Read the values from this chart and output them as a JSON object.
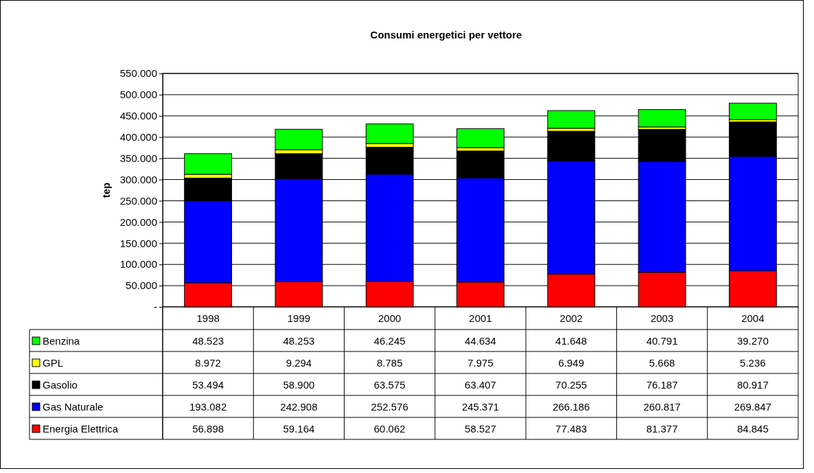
{
  "chart_data": {
    "type": "bar",
    "title": "Consumi energetici per vettore",
    "ylabel": "tep",
    "stacked": true,
    "grid": "y",
    "legend": "bottom",
    "categories": [
      "1998",
      "1999",
      "2000",
      "2001",
      "2002",
      "2003",
      "2004"
    ],
    "ylim": [
      0,
      550000
    ],
    "yticks": [
      {
        "value": 0,
        "label": "-"
      },
      {
        "value": 50000,
        "label": "50.000"
      },
      {
        "value": 100000,
        "label": "100.000"
      },
      {
        "value": 150000,
        "label": "150.000"
      },
      {
        "value": 200000,
        "label": "200.000"
      },
      {
        "value": 250000,
        "label": "250.000"
      },
      {
        "value": 300000,
        "label": "300.000"
      },
      {
        "value": 350000,
        "label": "350.000"
      },
      {
        "value": 400000,
        "label": "400.000"
      },
      {
        "value": 450000,
        "label": "450.000"
      },
      {
        "value": 500000,
        "label": "500.000"
      },
      {
        "value": 550000,
        "label": "550.000"
      }
    ],
    "series": [
      {
        "name": "Energia Elettrica",
        "color": "#ff0000",
        "values": [
          56898,
          59164,
          60062,
          58527,
          77483,
          81377,
          84845
        ],
        "value_labels": [
          "56.898",
          "59.164",
          "60.062",
          "58.527",
          "77.483",
          "81.377",
          "84.845"
        ]
      },
      {
        "name": "Gas Naturale",
        "color": "#0000ff",
        "values": [
          193082,
          242908,
          252576,
          245371,
          266186,
          260817,
          269847
        ],
        "value_labels": [
          "193.082",
          "242.908",
          "252.576",
          "245.371",
          "266.186",
          "260.817",
          "269.847"
        ]
      },
      {
        "name": "Gasolio",
        "color": "#000000",
        "values": [
          53494,
          58900,
          63575,
          63407,
          70255,
          76187,
          80917
        ],
        "value_labels": [
          "53.494",
          "58.900",
          "63.575",
          "63.407",
          "70.255",
          "76.187",
          "80.917"
        ]
      },
      {
        "name": "GPL",
        "color": "#ffff00",
        "values": [
          8972,
          9294,
          8785,
          7975,
          6949,
          5668,
          5236
        ],
        "value_labels": [
          "8.972",
          "9.294",
          "8.785",
          "7.975",
          "6.949",
          "5.668",
          "5.236"
        ]
      },
      {
        "name": "Benzina",
        "color": "#00ff00",
        "values": [
          48523,
          48253,
          46245,
          44634,
          41648,
          40791,
          39270
        ],
        "value_labels": [
          "48.523",
          "48.253",
          "46.245",
          "44.634",
          "41.648",
          "40.791",
          "39.270"
        ]
      }
    ]
  }
}
